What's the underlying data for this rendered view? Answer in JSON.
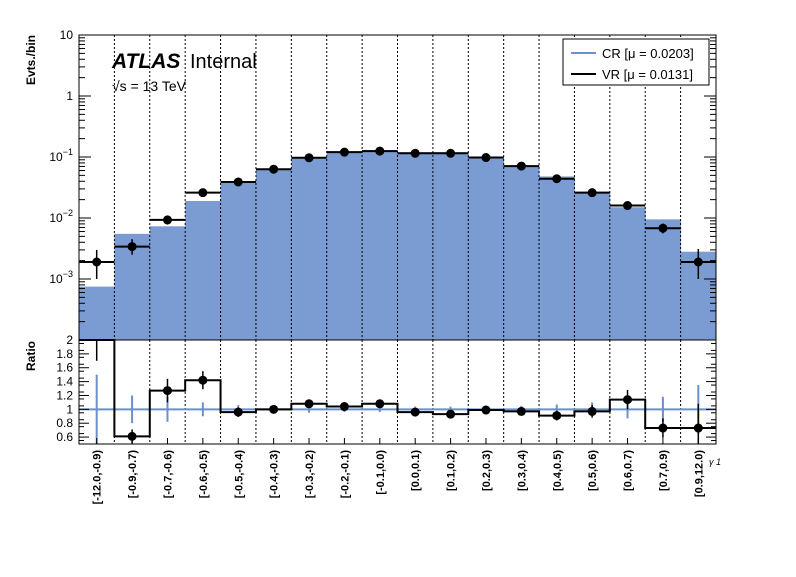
{
  "chart_data": [
    {
      "type": "histogram",
      "ylabel": "Evts./bin",
      "ylim": [
        0.0001,
        10
      ],
      "yscale": "log",
      "ytick_labels": [
        {
          "v": 0.001,
          "base": "10",
          "exp": "−3"
        },
        {
          "v": 0.01,
          "base": "10",
          "exp": "−2"
        },
        {
          "v": 0.1,
          "base": "10",
          "exp": "−1"
        },
        {
          "v": 1,
          "base": "1",
          "exp": ""
        },
        {
          "v": 10,
          "base": "10",
          "exp": ""
        }
      ],
      "grid": "vertical dotted lines at bin edges",
      "legend_position": "top-right",
      "annotations": {
        "atlas": "ATLAS",
        "internal": "Internal",
        "energy_sqrt": "√s",
        "energy_rest": " = 13 TeV"
      },
      "categories": [
        "[-12.0,-0.9)",
        "[-0.9,-0.7)",
        "[-0.7,-0.6)",
        "[-0.6,-0.5)",
        "[-0.5,-0.4)",
        "[-0.4,-0.3)",
        "[-0.3,-0.2)",
        "[-0.2,-0.1)",
        "[-0.1,0.0)",
        "[0.0,0.1)",
        "[0.1,0.2)",
        "[0.2,0.3)",
        "[0.3,0.4)",
        "[0.4,0.5)",
        "[0.5,0.6)",
        "[0.6,0.7)",
        "[0.7,0.9)",
        "[0.9,12.0)"
      ],
      "series": [
        {
          "name": "CR [μ = 0.0203]",
          "style": "filled histogram",
          "color": "#7b9bd3",
          "line_color": "#6b8fcf",
          "values": [
            0.00075,
            0.0055,
            0.0073,
            0.019,
            0.04,
            0.063,
            0.095,
            0.12,
            0.13,
            0.12,
            0.12,
            0.1,
            0.073,
            0.048,
            0.027,
            0.015,
            0.0095,
            0.0028
          ]
        },
        {
          "name": "VR [μ = 0.0131]",
          "style": "points with error bars",
          "color": "#000000",
          "values": [
            0.0019,
            0.0034,
            0.0093,
            0.026,
            0.039,
            0.063,
            0.097,
            0.12,
            0.125,
            0.115,
            0.115,
            0.098,
            0.071,
            0.044,
            0.026,
            0.016,
            0.0068,
            0.0019
          ],
          "err_low": [
            0.0009,
            0.0009,
            0.0015,
            0.003,
            0.003,
            0.004,
            0.006,
            0.007,
            0.008,
            0.007,
            0.007,
            0.006,
            0.005,
            0.004,
            0.003,
            0.002,
            0.0012,
            0.0009
          ],
          "err_high": [
            0.0011,
            0.0011,
            0.0016,
            0.003,
            0.003,
            0.004,
            0.006,
            0.007,
            0.008,
            0.007,
            0.007,
            0.006,
            0.005,
            0.004,
            0.003,
            0.002,
            0.0013,
            0.0012
          ]
        }
      ]
    },
    {
      "type": "ratio",
      "ylabel": "Ratio",
      "ylim": [
        0.5,
        2.0
      ],
      "yticks": [
        0.6,
        0.8,
        1,
        1.2,
        1.4,
        1.6,
        1.8,
        2
      ],
      "ytick_labels": [
        "0.6",
        "0.8",
        "1",
        "1.2",
        "1.4",
        "1.6",
        "1.8",
        "2"
      ],
      "xlabel": "γ 1",
      "categories": [
        "[-12.0,-0.9)",
        "[-0.9,-0.7)",
        "[-0.7,-0.6)",
        "[-0.6,-0.5)",
        "[-0.5,-0.4)",
        "[-0.4,-0.3)",
        "[-0.3,-0.2)",
        "[-0.2,-0.1)",
        "[-0.1,0.0)",
        "[0.0,0.1)",
        "[0.1,0.2)",
        "[0.2,0.3)",
        "[0.3,0.4)",
        "[0.4,0.5)",
        "[0.5,0.6)",
        "[0.6,0.7)",
        "[0.7,0.9)",
        "[0.9,12.0)"
      ],
      "reference": {
        "value": 1,
        "err": [
          0.5,
          0.2,
          0.18,
          0.1,
          0.06,
          0.05,
          0.05,
          0.04,
          0.04,
          0.04,
          0.04,
          0.05,
          0.05,
          0.07,
          0.1,
          0.13,
          0.18,
          0.35
        ],
        "color": "#6b8fcf"
      },
      "values": [
        2.6,
        0.61,
        1.27,
        1.42,
        0.96,
        1.0,
        1.08,
        1.04,
        1.08,
        0.96,
        0.93,
        0.99,
        0.97,
        0.91,
        0.97,
        1.14,
        0.73,
        0.73
      ],
      "err": [
        0.9,
        0.1,
        0.17,
        0.13,
        0.07,
        0.06,
        0.05,
        0.05,
        0.05,
        0.05,
        0.05,
        0.05,
        0.05,
        0.07,
        0.09,
        0.14,
        0.14,
        0.35
      ]
    }
  ]
}
